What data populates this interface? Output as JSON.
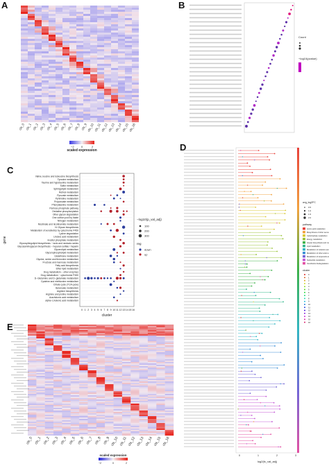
{
  "panels": {
    "A": {
      "letter": "A",
      "clusters": [
        "cls_0",
        "cls_1",
        "cls_2",
        "cls_3",
        "cls_4",
        "cls_5",
        "cls_6",
        "cls_7",
        "cls_8",
        "cls_9",
        "cls_10",
        "cls_11",
        "cls_12",
        "cls_13",
        "cls_14",
        "cls_15",
        "cls_16"
      ],
      "legend_title": "scaled expression",
      "legend_ticks": [
        "−2",
        "0",
        "2"
      ]
    },
    "B": {
      "letter": "B",
      "legend_title": "Count",
      "legend2_title": "−log10(pvalue)"
    },
    "C": {
      "letter": "C",
      "pathways": [
        "Valine, leucine and isoleucine biosynthesis",
        "Tyrosine metabolism",
        "Taurine and hypotaurine metabolism",
        "Sulfur metabolism",
        "Sphingolipid metabolism",
        "Retinol metabolism",
        "Pyruvate metabolism",
        "Pyrimidine metabolism",
        "Propanoate metabolism",
        "Phenylalanine metabolism",
        "Pentose phosphate pathway",
        "Oxidative phosphorylation",
        "Other glycan degradation",
        "One carbon pool by folate",
        "Nitrogen metabolism",
        "Nicotinate and nicotinamide metabolism",
        "N−Glycan biosynthesis",
        "Metabolism of xenobiotics by cytochrome P450",
        "Lysine degradation",
        "Linoleic acid metabolism",
        "Inositol phosphate metabolism",
        "Glycosphingolipid biosynthesis − lacto and neolacto series",
        "Glycosaminoglycan biosynthesis − heparan sulfate / heparin",
        "Glycerolipid metabolism",
        "Glycerophospholipid metabolism",
        "Glutathione metabolism",
        "Glycine, serine and threonine metabolism",
        "Fructose and mannose metabolism",
        "Fatty acid biosynthesis",
        "Ether lipid metabolism",
        "Drug metabolism − other enzymes",
        "Drug metabolism − cytochrome P450",
        "D−Glutamine and D−glutamate metabolism",
        "Cysteine and methionine metabolism",
        "Citrate cycle (TCA cycle)",
        "Butanoate metabolism",
        "Arginine biosynthesis",
        "Arginine and proline metabolism",
        "Arachidonic acid metabolism",
        "alpha−Linolenic acid metabolism"
      ],
      "ylabel": "gene",
      "xlabel": "cluster",
      "xticks": [
        "0",
        "1",
        "2",
        "3",
        "4",
        "5",
        "6",
        "7",
        "8",
        "9",
        "10",
        "11",
        "12",
        "13",
        "14",
        "15",
        "16"
      ],
      "size_legend_title": "−log10(p_val_adj)",
      "size_legend_values": [
        "100",
        "200",
        "300"
      ],
      "reg_legend_title": "reg",
      "reg_legend_items": [
        "down",
        "up"
      ],
      "colors": {
        "down": "#2c3e9e",
        "up": "#b3202a"
      }
    },
    "D": {
      "letter": "D",
      "xlabel": "log2(fc_val_adj)",
      "legend1_title": "avg_log2FC",
      "legend1_values": [
        "0.5",
        "1.0",
        "1.5",
        "2.0"
      ],
      "legend2_title": "pathway",
      "legend2_items": [
        "Amino acid metabolism",
        "Biosynthesis of other secondary metabolites",
        "Carbohydrate metabolism",
        "Energy metabolism",
        "Glycan biosynthesis and metabolism",
        "Lipid metabolism",
        "Metabolism of cofactors and vitamins",
        "Metabolism of other amino acids",
        "Metabolism of terpenoids and polyketides",
        "Nucleotide metabolism",
        "Xenobiotics biodegradation and metabolism"
      ],
      "legend2_colors": [
        "#e8413b",
        "#f2a340",
        "#d9c834",
        "#9ac43a",
        "#3eb24a",
        "#37b88f",
        "#34b6c4",
        "#3a8fd6",
        "#7466d6",
        "#c45ad6",
        "#e352a3"
      ],
      "legend3_title": "cluster",
      "legend3_items": [
        "0",
        "1",
        "2",
        "3",
        "4",
        "5",
        "6",
        "7",
        "8",
        "9",
        "10",
        "11",
        "12",
        "13",
        "14",
        "15",
        "16"
      ],
      "xticks": [
        "0",
        "1",
        "2",
        "3"
      ]
    },
    "E": {
      "letter": "E",
      "clusters": [
        "cls_0",
        "cls_1",
        "cls_2",
        "cls_3",
        "cls_4",
        "cls_5",
        "cls_6",
        "cls_7",
        "cls_8",
        "cls_9",
        "cls_10",
        "cls_11",
        "cls_12",
        "cls_13",
        "cls_14",
        "cls_15",
        "cls_16"
      ],
      "legend_title": "scaled expression",
      "legend_ticks": [
        "−2",
        "−1",
        "0",
        "1",
        "2"
      ]
    }
  }
}
